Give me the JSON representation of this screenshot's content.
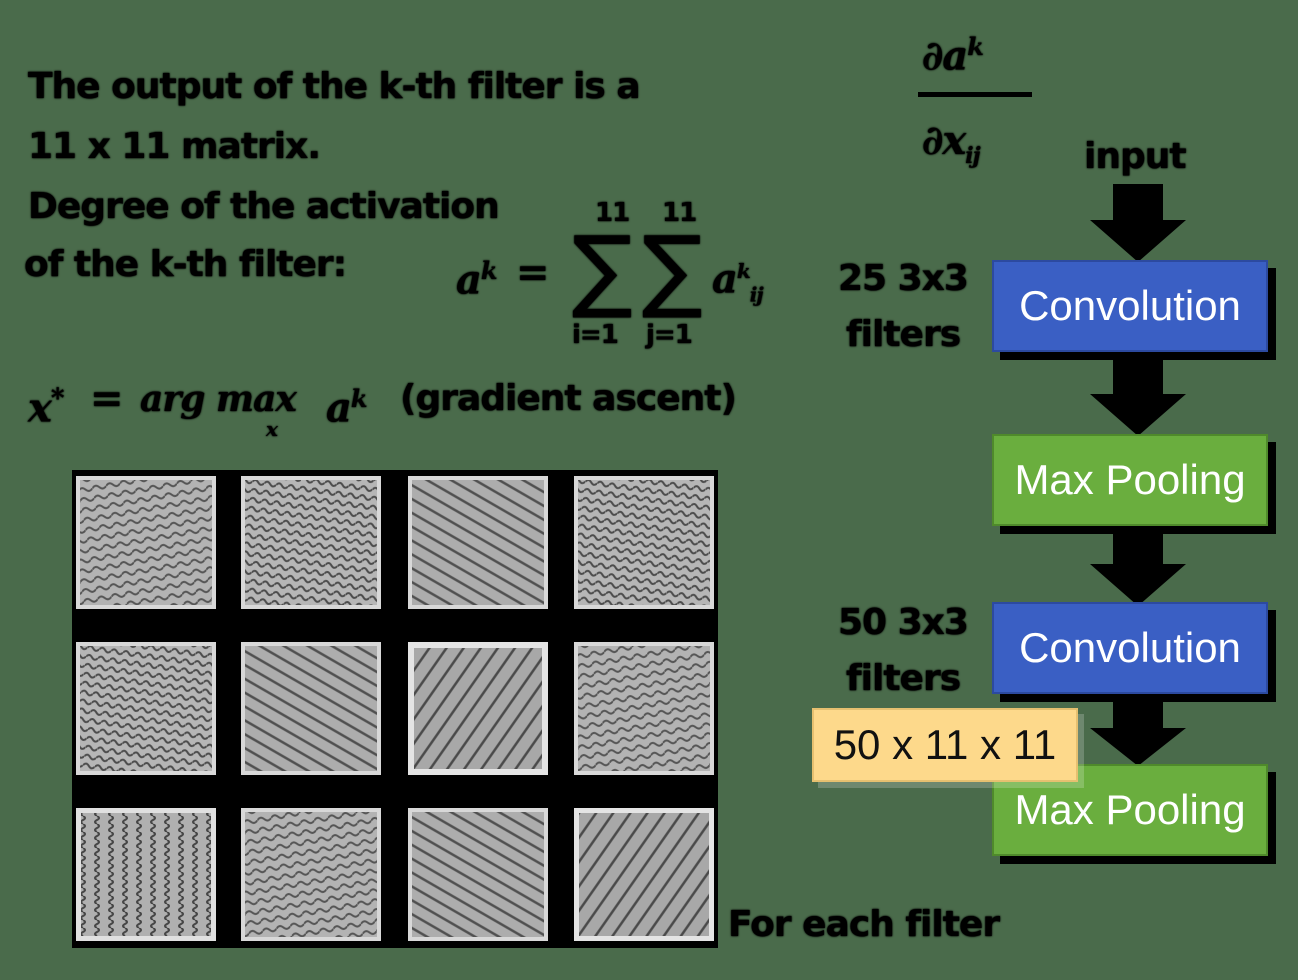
{
  "text": {
    "line1": "The output of the k-th filter is a",
    "line2": "11 x 11 matrix.",
    "line3": "Degree of the activation",
    "line4": "of the k-th filter:",
    "for_each": "For each filter",
    "grad_ascent": "(gradient ascent)"
  },
  "formula": {
    "a_k": "a",
    "k_sup": "k",
    "equals": "=",
    "sum_top_1": "11",
    "sum_top_2": "11",
    "sum_bot_1": "i=1",
    "sum_bot_2": "j=1",
    "a_ij": "a",
    "ij_sub": "ij",
    "ij_sup": "k",
    "xstar": "x",
    "xstar_sup": "*",
    "argmax": "arg max",
    "argmax_sub": "x",
    "argmax_a": "a",
    "argmax_sup": "k",
    "partial_num": "∂a",
    "partial_num_sup": "k",
    "partial_den": "∂x",
    "partial_den_sub": "ij"
  },
  "flow": {
    "input": "input",
    "filters1": "25 3x3",
    "filters1b": "filters",
    "filters2": "50 3x3",
    "filters2b": "filters",
    "conv1": "Convolution",
    "pool1": "Max Pooling",
    "conv2": "Convolution",
    "pool2": "Max Pooling",
    "shape": "50 x 11 x 11"
  },
  "colors": {
    "background": "#4a6b4b",
    "conv": "#3a5fc4",
    "pool": "#6aae3e",
    "shape_label": "#fdd98b"
  }
}
